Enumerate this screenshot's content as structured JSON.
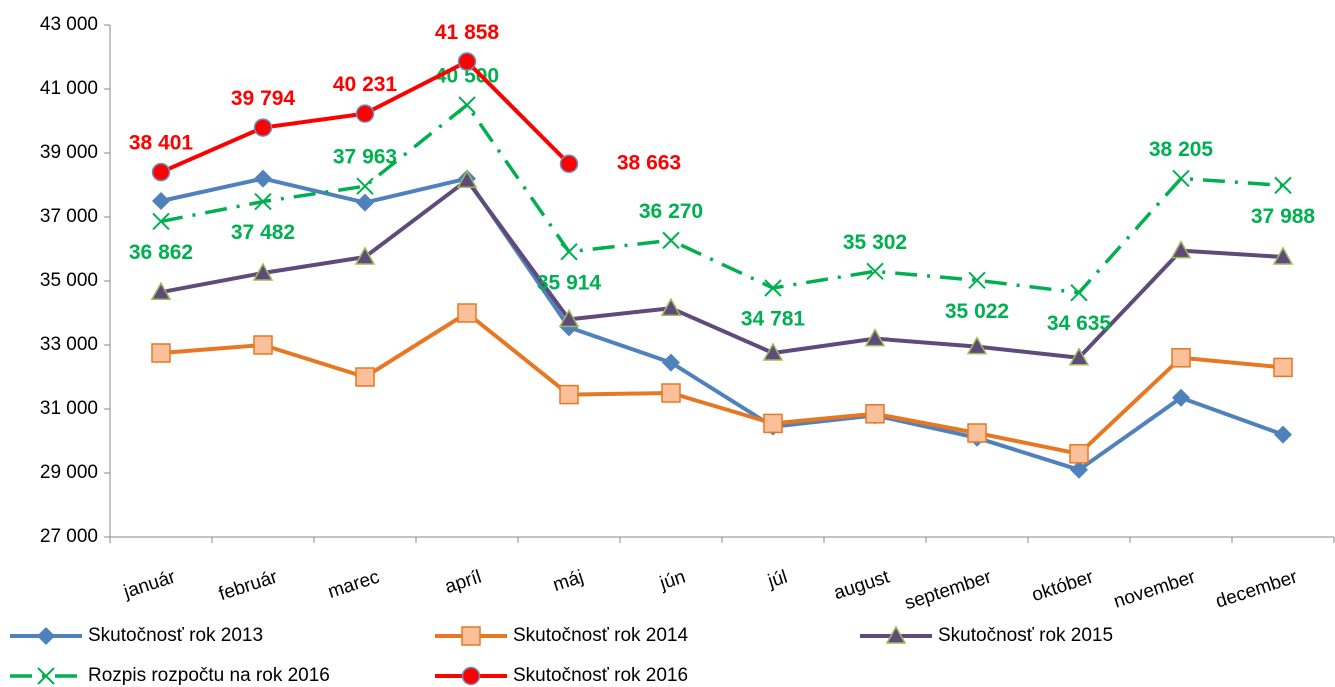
{
  "chart_data": {
    "type": "line",
    "categories": [
      "január",
      "február",
      "marec",
      "apríl",
      "máj",
      "jún",
      "júl",
      "august",
      "september",
      "október",
      "november",
      "december"
    ],
    "ylim": [
      27000,
      43000
    ],
    "yticks": [
      {
        "value": 27000,
        "label": "27 000"
      },
      {
        "value": 29000,
        "label": "29 000"
      },
      {
        "value": 31000,
        "label": "31 000"
      },
      {
        "value": 33000,
        "label": "33 000"
      },
      {
        "value": 35000,
        "label": "35 000"
      },
      {
        "value": 37000,
        "label": "37 000"
      },
      {
        "value": 39000,
        "label": "39 000"
      },
      {
        "value": 41000,
        "label": "41 000"
      },
      {
        "value": 43000,
        "label": "43 000"
      }
    ],
    "grid": false,
    "series": [
      {
        "name": "Skutočnosť rok 2013",
        "color": "#4f81bd",
        "marker": "diamond",
        "values": [
          37500,
          38200,
          37450,
          38200,
          33550,
          32450,
          30450,
          30800,
          30100,
          29100,
          31350,
          30200
        ]
      },
      {
        "name": "Skutočnosť rok 2014",
        "color": "#e87722",
        "marker": "square",
        "values": [
          32750,
          33000,
          32000,
          34000,
          31450,
          31500,
          30550,
          30850,
          30250,
          29600,
          32600,
          32300
        ]
      },
      {
        "name": "Skutočnosť rok 2015",
        "color": "#604a7b",
        "marker": "triangle",
        "values": [
          34650,
          35250,
          35750,
          38150,
          33800,
          34150,
          32750,
          33200,
          32950,
          32600,
          35950,
          35750
        ]
      },
      {
        "name": "Rozpis rozpočtu na rok 2016",
        "color": "#00b050",
        "marker": "cross",
        "dashed": true,
        "values": [
          36862,
          37482,
          37963,
          40500,
          35914,
          36270,
          34781,
          35302,
          35022,
          34635,
          38205,
          37988
        ],
        "value_labels": [
          "36 862",
          "37 482",
          "37 963",
          "40 500",
          "35 914",
          "36 270",
          "34 781",
          "35 302",
          "35 022",
          "34 635",
          "38 205",
          "37 988"
        ]
      },
      {
        "name": "Skutočnosť rok 2016",
        "color": "#ff0000",
        "marker": "circle",
        "values": [
          38401,
          39794,
          40231,
          41858,
          38663,
          null,
          null,
          null,
          null,
          null,
          null,
          null
        ],
        "value_labels": [
          "38 401",
          "39 794",
          "40 231",
          "41 858",
          "38 663",
          null,
          null,
          null,
          null,
          null,
          null,
          null
        ]
      }
    ]
  }
}
